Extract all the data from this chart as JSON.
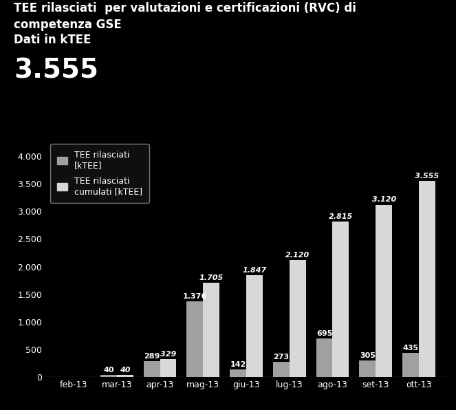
{
  "title_line1": "TEE rilasciati  per valutazioni e certificazioni (RVC) di",
  "title_line2": "competenza GSE",
  "title_line3": "Dati in kTEE",
  "big_number": "3.555",
  "categories": [
    "feb-13",
    "mar-13",
    "apr-13",
    "mag-13",
    "giu-13",
    "lug-13",
    "ago-13",
    "set-13",
    "ott-13"
  ],
  "monthly_values": [
    0,
    40,
    289,
    1376,
    142,
    273,
    695,
    305,
    435
  ],
  "cumulative_values": [
    0,
    40,
    329,
    1705,
    1847,
    2120,
    2815,
    3120,
    3555
  ],
  "monthly_labels": [
    "",
    "40",
    "289",
    "1.376",
    "142",
    "273",
    "695",
    "305",
    "435"
  ],
  "cumulative_labels": [
    "",
    "40",
    "329",
    "1.705",
    "1.847",
    "2.120",
    "2.815",
    "3.120",
    "3.555"
  ],
  "bar_color_monthly": "#a0a0a0",
  "bar_color_cumulative": "#d8d8d8",
  "background_color": "#000000",
  "text_color": "#ffffff",
  "ylim": [
    0,
    4300
  ],
  "yticks": [
    0,
    500,
    1000,
    1500,
    2000,
    2500,
    3000,
    3500,
    4000
  ],
  "ytick_labels": [
    "0",
    "500",
    "1.000",
    "1.500",
    "2.000",
    "2.500",
    "3.000",
    "3.500",
    "4.000"
  ],
  "legend_label_monthly": "TEE rilasciati\n[kTEE]",
  "legend_label_cumulative": "TEE rilasciati\ncumulati [kTEE]",
  "title_fontsize": 12,
  "big_number_fontsize": 28,
  "axis_label_fontsize": 9,
  "bar_label_fontsize": 8
}
